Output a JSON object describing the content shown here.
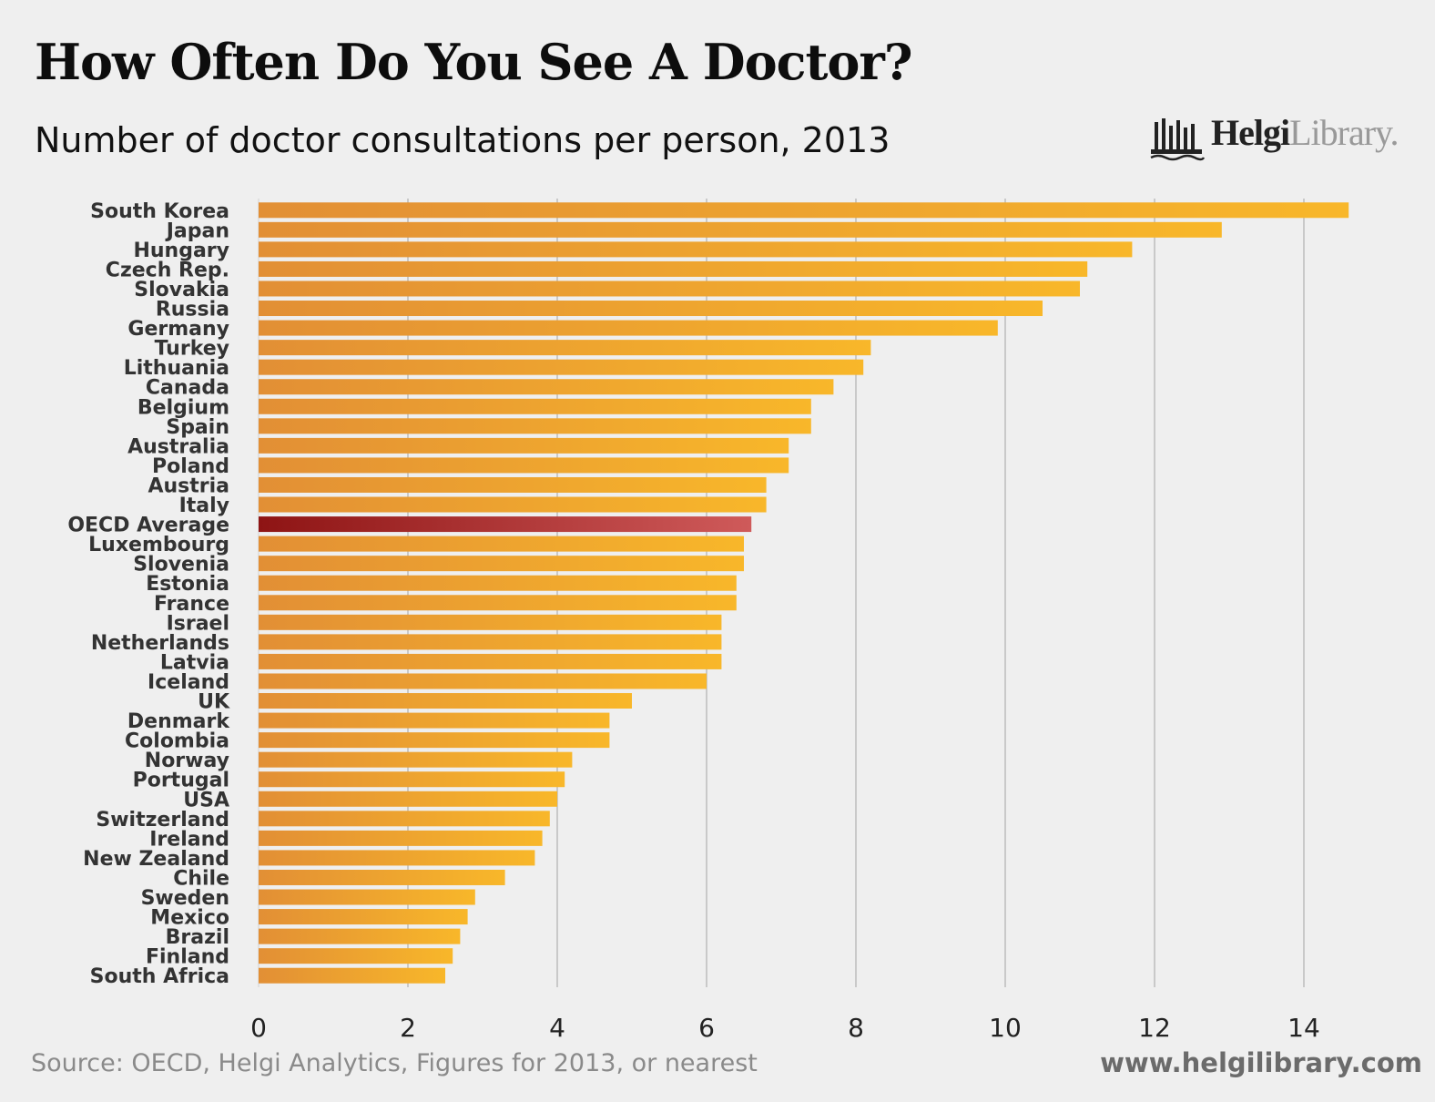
{
  "header": {
    "title": "How Often Do You See A Doctor?",
    "subtitle": "Number of doctor consultations per person, 2013"
  },
  "logo": {
    "strong": "Helgi",
    "light": "Library."
  },
  "footer": {
    "source": "Source: OECD, Helgi Analytics, Figures for 2013, or nearest",
    "url": "www.helgilibrary.com"
  },
  "colors": {
    "bar_start": "#e28f35",
    "bar_end": "#f8b72a",
    "highlight_start": "#8e1414",
    "highlight_end": "#cf5a5a",
    "background": "#efefef",
    "grid": "#c9c9c9"
  },
  "chart_data": {
    "type": "bar",
    "orientation": "horizontal",
    "title": "How Often Do You See A Doctor?",
    "subtitle": "Number of doctor consultations per person, 2013",
    "xlabel": "",
    "ylabel": "",
    "xlim": [
      0,
      15
    ],
    "xticks": [
      0,
      2,
      4,
      6,
      8,
      10,
      12,
      14
    ],
    "grid": true,
    "highlight": "OECD Average",
    "categories": [
      "South Korea",
      "Japan",
      "Hungary",
      "Czech Rep.",
      "Slovakia",
      "Russia",
      "Germany",
      "Turkey",
      "Lithuania",
      "Canada",
      "Belgium",
      "Spain",
      "Australia",
      "Poland",
      "Austria",
      "Italy",
      "OECD Average",
      "Luxembourg",
      "Slovenia",
      "Estonia",
      "France",
      "Israel",
      "Netherlands",
      "Latvia",
      "Iceland",
      "UK",
      "Denmark",
      "Colombia",
      "Norway",
      "Portugal",
      "USA",
      "Switzerland",
      "Ireland",
      "New Zealand",
      "Chile",
      "Sweden",
      "Mexico",
      "Brazil",
      "Finland",
      "South Africa"
    ],
    "values": [
      14.6,
      12.9,
      11.7,
      11.1,
      11.0,
      10.5,
      9.9,
      8.2,
      8.1,
      7.7,
      7.4,
      7.4,
      7.1,
      7.1,
      6.8,
      6.8,
      6.6,
      6.5,
      6.5,
      6.4,
      6.4,
      6.2,
      6.2,
      6.2,
      6.0,
      5.0,
      4.7,
      4.7,
      4.2,
      4.1,
      4.0,
      3.9,
      3.8,
      3.7,
      3.3,
      2.9,
      2.8,
      2.7,
      2.6,
      2.5
    ]
  }
}
